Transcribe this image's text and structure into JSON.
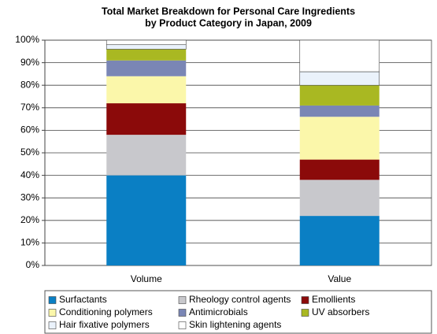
{
  "chart_data": {
    "type": "stacked_bar",
    "title": [
      "Total Market Breakdown for Personal Care Ingredients",
      "by Product Category in Japan, 2009"
    ],
    "categories": [
      "Volume",
      "Value"
    ],
    "series": [
      {
        "name": "Surfactants",
        "color": "#0a7fc4",
        "values": [
          40,
          22
        ]
      },
      {
        "name": "Rheology control agents",
        "color": "#c8c8cc",
        "values": [
          18,
          16
        ]
      },
      {
        "name": "Emollients",
        "color": "#8b0a0a",
        "values": [
          14,
          9
        ]
      },
      {
        "name": "Conditioning polymers",
        "color": "#fbf7aa",
        "values": [
          12,
          19
        ]
      },
      {
        "name": "Antimicrobials",
        "color": "#7a86b5",
        "values": [
          7,
          5
        ]
      },
      {
        "name": "UV absorbers",
        "color": "#a9b822",
        "values": [
          5,
          9
        ]
      },
      {
        "name": "Hair fixative polymers",
        "color": "#eaf2fb",
        "values": [
          2,
          6
        ]
      },
      {
        "name": "Skin lightening agents",
        "color": "#ffffff",
        "values": [
          2,
          14
        ]
      }
    ],
    "ylim": [
      0,
      100
    ],
    "yticks": [
      {
        "value": 0,
        "label": "0%"
      },
      {
        "value": 10,
        "label": "10%"
      },
      {
        "value": 20,
        "label": "20%"
      },
      {
        "value": 30,
        "label": "30%"
      },
      {
        "value": 40,
        "label": "40%"
      },
      {
        "value": 50,
        "label": "50%"
      },
      {
        "value": 60,
        "label": "60%"
      },
      {
        "value": 70,
        "label": "70%"
      },
      {
        "value": 80,
        "label": "80%"
      },
      {
        "value": 90,
        "label": "90%"
      },
      {
        "value": 100,
        "label": "100%"
      }
    ],
    "grid": true
  }
}
